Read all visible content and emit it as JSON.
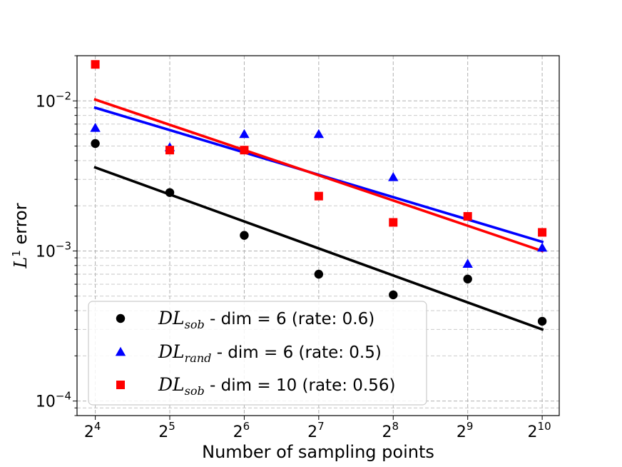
{
  "chart_data": {
    "type": "scatter",
    "title": "",
    "xlabel": "Number of sampling points",
    "ylabel": {
      "symbol": "L",
      "sup": "1",
      "text": " error"
    },
    "xscale": "log2",
    "yscale": "log10",
    "x": [
      16,
      32,
      64,
      128,
      256,
      512,
      1024
    ],
    "xlim": [
      13.5,
      1200
    ],
    "ylim": [
      8e-05,
      0.02
    ],
    "grid": true,
    "x_tick_labels": [
      {
        "base": "2",
        "exp": "4"
      },
      {
        "base": "2",
        "exp": "5"
      },
      {
        "base": "2",
        "exp": "6"
      },
      {
        "base": "2",
        "exp": "7"
      },
      {
        "base": "2",
        "exp": "8"
      },
      {
        "base": "2",
        "exp": "9"
      },
      {
        "base": "2",
        "exp": "10"
      }
    ],
    "y_tick_labels": [
      {
        "value": 0.01,
        "base": "10",
        "exp": "−2"
      },
      {
        "value": 0.001,
        "base": "10",
        "exp": "−3"
      },
      {
        "value": 0.0001,
        "base": "10",
        "exp": "−4"
      }
    ],
    "legend_position": "lower-left",
    "series": [
      {
        "name": "DL_sob - dim = 6 (rate: 0.6)",
        "label_math": "DL",
        "label_sub": "sob",
        "label_text": " - dim = 6 (rate: 0.6)",
        "marker": "circle",
        "color": "#000000",
        "values": [
          0.0052,
          0.00245,
          0.00127,
          0.0007,
          0.00051,
          0.00065,
          0.00034
        ],
        "fit": {
          "x": [
            16,
            1024
          ],
          "y": [
            0.0036,
            0.0003
          ]
        }
      },
      {
        "name": "DL_rand - dim = 6 (rate: 0.5)",
        "label_math": "DL",
        "label_sub": "rand",
        "label_text": " - dim = 6 (rate: 0.5)",
        "marker": "triangle",
        "color": "#0000ff",
        "values": [
          0.0066,
          0.0049,
          0.006,
          0.006,
          0.0031,
          0.00082,
          0.00105
        ],
        "fit": {
          "x": [
            16,
            1024
          ],
          "y": [
            0.009,
            0.00115
          ]
        }
      },
      {
        "name": "DL_sob - dim = 10 (rate: 0.56)",
        "label_math": "DL",
        "label_sub": "sob",
        "label_text": " - dim = 10 (rate: 0.56)",
        "marker": "square",
        "color": "#ff0000",
        "values": [
          0.0175,
          0.0047,
          0.0047,
          0.00232,
          0.00155,
          0.0017,
          0.00133
        ],
        "fit": {
          "x": [
            16,
            1024
          ],
          "y": [
            0.0102,
            0.001
          ]
        }
      }
    ]
  }
}
